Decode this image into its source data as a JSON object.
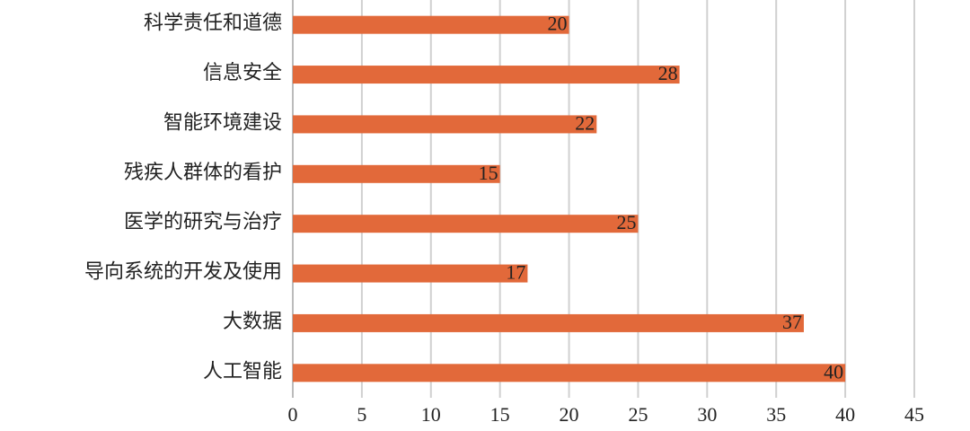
{
  "chart_data": {
    "type": "hbar",
    "categories": [
      "科学责任和道德",
      "信息安全",
      "智能环境建设",
      "残疾人群体的看护",
      "医学的研究与治疗",
      "导向系统的开发及使用",
      "大数据",
      "人工智能"
    ],
    "values": [
      20,
      28,
      22,
      15,
      25,
      17,
      37,
      40
    ],
    "color": "#e2693a",
    "xlim": [
      0,
      45
    ],
    "xticks": [
      0,
      5,
      10,
      15,
      20,
      25,
      30,
      35,
      40,
      45
    ],
    "grid": true
  }
}
